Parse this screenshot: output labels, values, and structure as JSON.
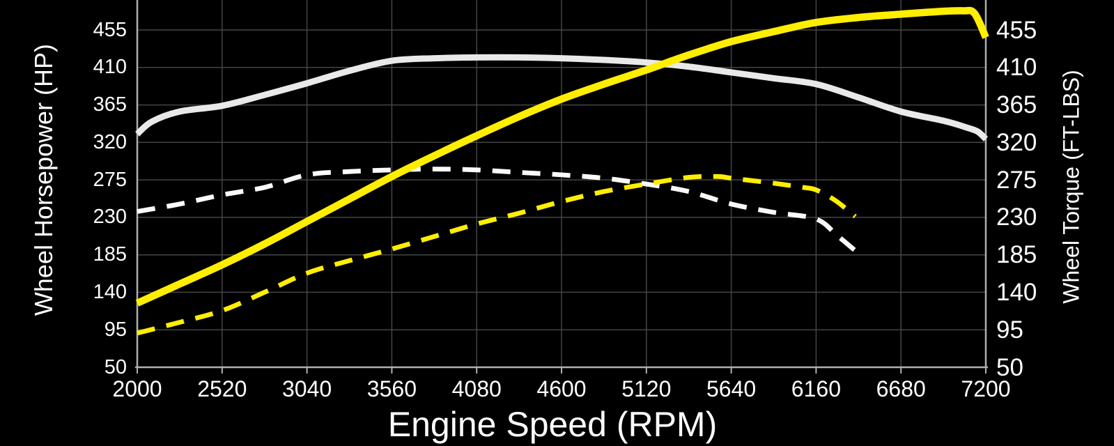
{
  "chart_data": {
    "type": "line",
    "xlabel": "Engine Speed (RPM)",
    "ylabel_left": "Wheel Horsepower (HP)",
    "ylabel_right": "Wheel Torque (FT-LBS)",
    "x_ticks": [
      2000,
      2520,
      3040,
      3560,
      4080,
      4600,
      5120,
      5640,
      6160,
      6680,
      7200
    ],
    "y_ticks": [
      455,
      410,
      365,
      320,
      275,
      230,
      185,
      140,
      95,
      50
    ],
    "x_range": [
      2000,
      7200
    ],
    "y_axis_value_range": [
      50,
      455
    ],
    "grid": true,
    "legend_position": "none",
    "colors": {
      "background": "#000000",
      "gridline": "#454545",
      "axis_border": "#b0b0b0",
      "label_text": "#ffffff",
      "yellow_line": "#ffee00",
      "white_solid_line": "#e9e9e9",
      "white_dashed_line": "#fafafa"
    },
    "series": [
      {
        "name": "wheel-torque-dashed",
        "color": "#fafafa",
        "style": "dashed",
        "width": 6.8,
        "points": [
          [
            2000,
            237
          ],
          [
            2260,
            246
          ],
          [
            2520,
            257
          ],
          [
            2780,
            266
          ],
          [
            3040,
            281
          ],
          [
            3300,
            285
          ],
          [
            3560,
            287
          ],
          [
            3820,
            288
          ],
          [
            4080,
            287
          ],
          [
            4340,
            284
          ],
          [
            4600,
            281
          ],
          [
            4860,
            277
          ],
          [
            5120,
            270
          ],
          [
            5380,
            261
          ],
          [
            5640,
            246
          ],
          [
            5900,
            236
          ],
          [
            6160,
            228
          ],
          [
            6290,
            208
          ],
          [
            6400,
            190
          ]
        ]
      },
      {
        "name": "wheel-horsepower-dashed",
        "color": "#ffee00",
        "style": "dashed",
        "width": 6.8,
        "points": [
          [
            2000,
            91
          ],
          [
            2260,
            104
          ],
          [
            2520,
            118
          ],
          [
            2780,
            140
          ],
          [
            3040,
            163
          ],
          [
            3300,
            178
          ],
          [
            3560,
            192
          ],
          [
            3820,
            207
          ],
          [
            4080,
            222
          ],
          [
            4340,
            235
          ],
          [
            4600,
            249
          ],
          [
            4860,
            261
          ],
          [
            5120,
            270
          ],
          [
            5380,
            278
          ],
          [
            5560,
            279
          ],
          [
            5640,
            277
          ],
          [
            5900,
            271
          ],
          [
            6080,
            266
          ],
          [
            6160,
            263
          ],
          [
            6280,
            250
          ],
          [
            6400,
            231
          ]
        ]
      },
      {
        "name": "wheel-torque-solid",
        "color": "#e9e9e9",
        "style": "solid",
        "width": 9,
        "points": [
          [
            2000,
            330
          ],
          [
            2090,
            345
          ],
          [
            2260,
            357
          ],
          [
            2520,
            364
          ],
          [
            2780,
            377
          ],
          [
            3040,
            391
          ],
          [
            3300,
            406
          ],
          [
            3560,
            418
          ],
          [
            3820,
            421
          ],
          [
            4080,
            422
          ],
          [
            4340,
            422
          ],
          [
            4600,
            421
          ],
          [
            4860,
            419
          ],
          [
            5120,
            416
          ],
          [
            5380,
            411
          ],
          [
            5640,
            404
          ],
          [
            5900,
            397
          ],
          [
            6160,
            390
          ],
          [
            6420,
            374
          ],
          [
            6680,
            357
          ],
          [
            6940,
            346
          ],
          [
            7080,
            338
          ],
          [
            7150,
            333
          ],
          [
            7200,
            324
          ]
        ]
      },
      {
        "name": "wheel-horsepower-solid",
        "color": "#ffee00",
        "style": "solid",
        "width": 10.5,
        "points": [
          [
            2000,
            127
          ],
          [
            2260,
            150
          ],
          [
            2520,
            173
          ],
          [
            2780,
            198
          ],
          [
            3040,
            225
          ],
          [
            3300,
            252
          ],
          [
            3560,
            279
          ],
          [
            3820,
            304
          ],
          [
            4080,
            328
          ],
          [
            4340,
            351
          ],
          [
            4600,
            372
          ],
          [
            4860,
            390
          ],
          [
            5120,
            407
          ],
          [
            5380,
            425
          ],
          [
            5640,
            441
          ],
          [
            5900,
            453
          ],
          [
            6160,
            464
          ],
          [
            6420,
            470
          ],
          [
            6680,
            474
          ],
          [
            6900,
            477
          ],
          [
            7060,
            478
          ],
          [
            7130,
            475
          ],
          [
            7200,
            446
          ]
        ]
      }
    ]
  }
}
